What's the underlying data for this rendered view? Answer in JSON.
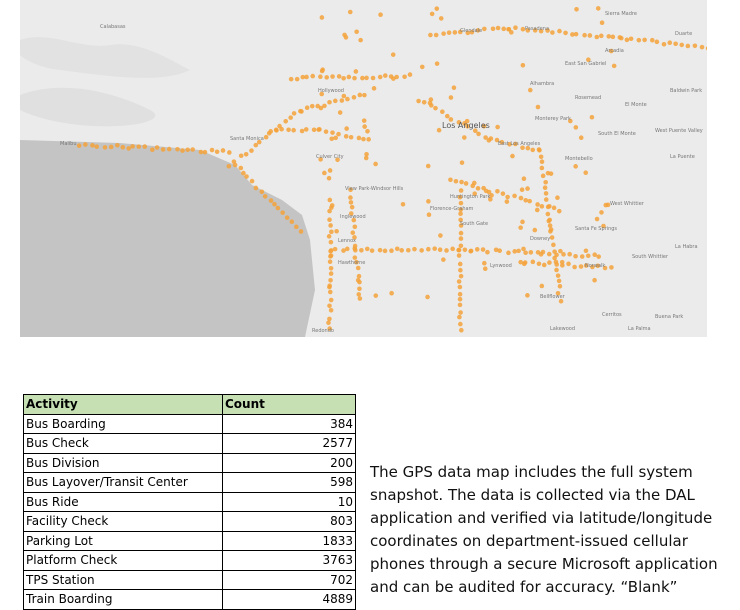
{
  "map": {
    "labels": [
      "Calabasas",
      "Glendale",
      "Pasadena",
      "Sierra Madre",
      "Duarte",
      "Arcadia",
      "East San Gabriel",
      "Alhambra",
      "Rosemead",
      "El Monte",
      "Baldwin Park",
      "Hollywood",
      "Los Angeles",
      "Monterey Park",
      "East Los Angeles",
      "South El Monte",
      "West Puente Valley",
      "La Puente",
      "Culver City",
      "Santa Monica",
      "Malibu",
      "View Park-Windsor Hills",
      "Huntington Park",
      "Montebello",
      "Florence-Graham",
      "West Whittier",
      "Inglewood",
      "South Gate",
      "Santa Fe Springs",
      "Downey",
      "Lennox",
      "Hawthorne",
      "Lynwood",
      "Norwalk",
      "South Whittier",
      "La Habra",
      "Bellflower",
      "Cerritos",
      "Buena Park",
      "Lakewood",
      "La Palma",
      "Redondo"
    ]
  },
  "table": {
    "header": [
      "Activity",
      "Count"
    ],
    "rows": [
      [
        "Bus Boarding",
        "384"
      ],
      [
        "Bus Check",
        "2577"
      ],
      [
        "Bus Division",
        "200"
      ],
      [
        "Bus Layover/Transit Center",
        "598"
      ],
      [
        "Bus Ride",
        "10"
      ],
      [
        "Facility Check",
        "803"
      ],
      [
        "Parking Lot",
        "1833"
      ],
      [
        "Platform Check",
        "3763"
      ],
      [
        "TPS Station",
        "702"
      ],
      [
        "Train Boarding",
        "4889"
      ]
    ]
  },
  "paragraph": {
    "lines": [
      "The GPS data map includes the full system",
      "snapshot. The data is collected via the DAL",
      "application and verified via latitude/longitude",
      "coordinates on department-issued cellular",
      "phones through a secure Microsoft application",
      "and can be audited for accuracy. “Blank”"
    ]
  }
}
